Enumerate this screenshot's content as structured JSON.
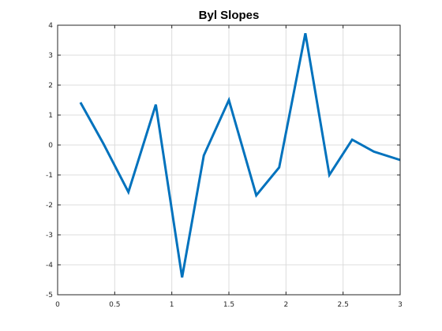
{
  "chart_data": {
    "type": "line",
    "title": "Byl Slopes",
    "xlabel": "",
    "ylabel": "",
    "xlim": [
      0,
      3
    ],
    "ylim": [
      -5,
      4
    ],
    "grid": true,
    "x_ticks": [
      0,
      0.5,
      1,
      1.5,
      2,
      2.5,
      3
    ],
    "x_tick_labels": [
      "0",
      "0.5",
      "1",
      "1.5",
      "2",
      "2.5",
      "3"
    ],
    "y_ticks": [
      -5,
      -4,
      -3,
      -2,
      -1,
      0,
      1,
      2,
      3,
      4
    ],
    "y_tick_labels": [
      "-5",
      "-4",
      "-3",
      "-2",
      "-1",
      "0",
      "1",
      "2",
      "3",
      "4"
    ],
    "series": [
      {
        "color": "#0072bd",
        "x": [
          0.2,
          0.4,
          0.62,
          0.86,
          1.09,
          1.28,
          1.5,
          1.74,
          1.94,
          2.17,
          2.38,
          2.58,
          2.77,
          3.0
        ],
        "y": [
          1.42,
          0.05,
          -1.57,
          1.35,
          -4.42,
          -0.35,
          1.5,
          -1.68,
          -0.75,
          3.73,
          -1.0,
          0.18,
          -0.22,
          -0.5
        ]
      }
    ]
  }
}
